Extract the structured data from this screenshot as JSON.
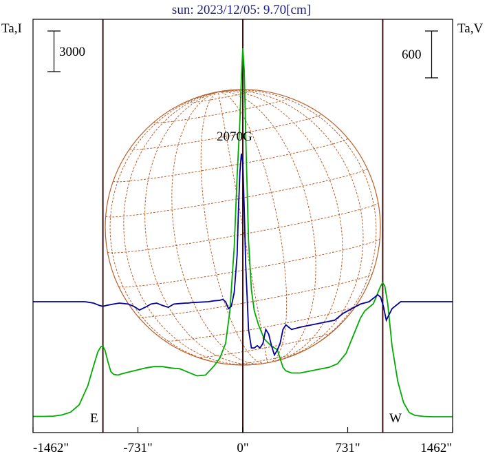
{
  "chart_data": {
    "type": "line",
    "title": "sun: 2023/12/05: 9.70[cm]",
    "ylabel_left": "Ta,I",
    "ylabel_right": "Ta,V",
    "scale_left": "3000",
    "scale_right": "600",
    "annotation": "2070G",
    "limb_east": "E",
    "limb_west": "W",
    "xlim": [
      -1462,
      1462
    ],
    "xticks": [
      {
        "value": -1462,
        "label": "-1462\""
      },
      {
        "value": -731,
        "label": "-731\""
      },
      {
        "value": 0,
        "label": "0\""
      },
      {
        "value": 731,
        "label": "731\""
      },
      {
        "value": 1462,
        "label": "1462\""
      }
    ],
    "vlines": [
      -975,
      0,
      975
    ],
    "colors": {
      "stokes_i": "#00aa00",
      "stokes_v": "#000099",
      "disk": "#b8602c",
      "vline": "#3a1010"
    },
    "series": [
      {
        "key": "stokes_i",
        "x": [
          -1462,
          -1380,
          -1320,
          -1260,
          -1200,
          -1140,
          -1080,
          -1040,
          -1010,
          -990,
          -975,
          -960,
          -940,
          -920,
          -900,
          -870,
          -840,
          -800,
          -740,
          -680,
          -620,
          -560,
          -500,
          -440,
          -380,
          -320,
          -260,
          -200,
          -160,
          -120,
          -90,
          -60,
          -40,
          -20,
          -10,
          0,
          10,
          20,
          40,
          60,
          80,
          110,
          150,
          200,
          240,
          280,
          300,
          340,
          400,
          450,
          500,
          550,
          600,
          660,
          720,
          780,
          820,
          850,
          880,
          910,
          940,
          960,
          975,
          990,
          1010,
          1040,
          1080,
          1120,
          1160,
          1200,
          1260,
          1320,
          1380,
          1462
        ],
        "y": [
          0.5,
          0.5,
          0.9,
          2.5,
          6.5,
          17.0,
          44.0,
          72.0,
          92.0,
          99.0,
          100.0,
          94.0,
          78.0,
          64.0,
          60.0,
          59.0,
          61.0,
          63.0,
          66.0,
          69.0,
          71.0,
          71.0,
          69.0,
          68.0,
          63.0,
          58.0,
          59.0,
          72.0,
          83.0,
          104.0,
          150.0,
          240.0,
          340.0,
          420.0,
          480.0,
          522.0,
          490.0,
          400.0,
          250.0,
          180.0,
          150.0,
          130.0,
          110.0,
          100.0,
          95.0,
          70.0,
          65.0,
          62.0,
          62.0,
          64.0,
          66.0,
          68.0,
          70.0,
          75.0,
          90.0,
          120.0,
          140.0,
          150.0,
          155.0,
          160.0,
          175.0,
          185.0,
          190.0,
          185.0,
          160.0,
          100.0,
          50.0,
          20.0,
          6.0,
          2.0,
          0.5,
          0.0,
          0.0,
          0.0
        ]
      },
      {
        "key": "stokes_v",
        "x": [
          -1462,
          -1100,
          -1040,
          -1000,
          -975,
          -950,
          -900,
          -860,
          -800,
          -760,
          -720,
          -680,
          -640,
          -600,
          -560,
          -520,
          -480,
          -440,
          -400,
          -380,
          -360,
          -300,
          -240,
          -200,
          -160,
          -140,
          -120,
          -100,
          -80,
          -60,
          -40,
          -30,
          -20,
          -10,
          0,
          10,
          20,
          30,
          40,
          60,
          80,
          100,
          120,
          140,
          160,
          180,
          200,
          220,
          240,
          260,
          280,
          300,
          320,
          340,
          400,
          480,
          560,
          640,
          700,
          760,
          820,
          880,
          920,
          940,
          960,
          980,
          1000,
          1040,
          1100,
          1200,
          1300,
          1462
        ],
        "y": [
          0,
          0,
          -3,
          -8,
          -10,
          -8,
          -5,
          -3,
          -5,
          -10,
          -18,
          -12,
          -5,
          -3,
          -8,
          -12,
          -5,
          -4,
          -3,
          -3,
          -2,
          -1,
          0,
          2,
          3,
          5,
          0,
          -15,
          -10,
          20,
          100,
          200,
          280,
          320,
          300,
          200,
          80,
          10,
          -60,
          -100,
          -100,
          -95,
          -100,
          -90,
          -60,
          -70,
          -95,
          -115,
          -105,
          -90,
          -60,
          -50,
          -55,
          -60,
          -55,
          -50,
          -45,
          -40,
          -25,
          -15,
          -5,
          0,
          10,
          15,
          10,
          -10,
          -40,
          -15,
          0,
          0,
          0,
          0
        ]
      }
    ]
  }
}
